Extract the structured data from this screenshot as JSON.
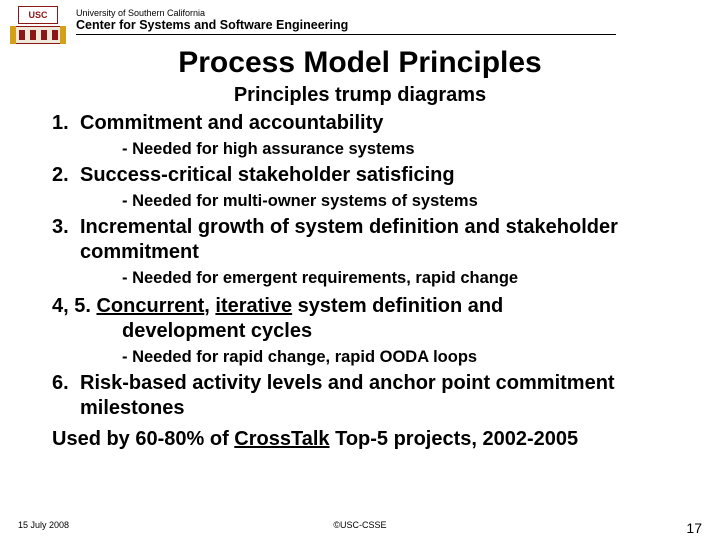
{
  "header": {
    "usc_badge": "USC",
    "university": "University of Southern California",
    "center": "Center for Systems and Software Engineering"
  },
  "title": "Process Model Principles",
  "subtitle": "Principles trump diagrams",
  "items": [
    {
      "num": "1.",
      "text": "Commitment and accountability",
      "sub": "- Needed for high assurance systems"
    },
    {
      "num": "2.",
      "text": "Success-critical stakeholder satisficing",
      "sub": "- Needed for multi-owner systems of systems"
    },
    {
      "num": "3.",
      "text": "Incremental growth of system definition and stakeholder commitment",
      "sub": "- Needed for emergent requirements, rapid change"
    }
  ],
  "item45": {
    "lead": "4, 5. ",
    "u1": "Concurrent",
    "mid1": ", ",
    "u2": "iterative",
    "tail1": " system definition and",
    "tail2": "development cycles",
    "sub": "- Needed for rapid change, rapid OODA loops"
  },
  "item6": {
    "num": "6.",
    "text": "Risk-based activity levels and anchor point commitment milestones"
  },
  "closing": {
    "pre": "Used by 60-80% of ",
    "u": "CrossTalk",
    "post": " Top-5 projects, 2002-2005"
  },
  "footer": {
    "date": "15 July 2008",
    "copyright": "©USC-CSSE",
    "page": "17"
  }
}
